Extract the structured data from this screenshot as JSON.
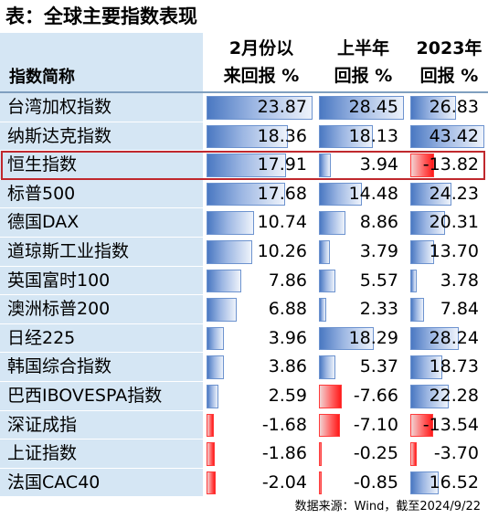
{
  "title": "表：全球主要指数表现",
  "header": {
    "name_label": "指数简称",
    "columns": [
      {
        "line1": "2月份以",
        "line2": "来回报 %"
      },
      {
        "line1": "上半年",
        "line2": "回报 %"
      },
      {
        "line1": "2023年",
        "line2": "回报 %"
      }
    ]
  },
  "rows": [
    {
      "name": "台湾加权指数",
      "values": [
        23.87,
        28.45,
        26.83
      ]
    },
    {
      "name": "纳斯达克指数",
      "values": [
        18.36,
        18.13,
        43.42
      ]
    },
    {
      "name": "恒生指数",
      "values": [
        17.91,
        3.94,
        -13.82
      ]
    },
    {
      "name": "标普500",
      "values": [
        17.68,
        14.48,
        24.23
      ]
    },
    {
      "name": "德国DAX",
      "values": [
        10.74,
        8.86,
        20.31
      ]
    },
    {
      "name": "道琼斯工业指数",
      "values": [
        10.26,
        3.79,
        13.7
      ]
    },
    {
      "name": "英国富时100",
      "values": [
        7.86,
        5.57,
        3.78
      ]
    },
    {
      "name": "澳洲标普200",
      "values": [
        6.88,
        2.33,
        7.84
      ]
    },
    {
      "name": "日经225",
      "values": [
        3.96,
        18.29,
        28.24
      ]
    },
    {
      "name": "韩国综合指数",
      "values": [
        3.86,
        5.37,
        18.73
      ]
    },
    {
      "name": "巴西IBOVESPA指数",
      "values": [
        2.59,
        -7.66,
        22.28
      ]
    },
    {
      "name": "深证成指",
      "values": [
        -1.68,
        -7.1,
        -13.54
      ]
    },
    {
      "name": "上证指数",
      "values": [
        -1.86,
        -0.25,
        -3.7
      ]
    },
    {
      "name": "法国CAC40",
      "values": [
        -2.04,
        -0.85,
        16.52
      ]
    }
  ],
  "highlighted_row": "恒生指数",
  "source": "数据来源：Wind，截至2024/9/22",
  "colors": {
    "name_column_bg": "#d5e6f4",
    "positive_bar": "#4a78c2",
    "negative_bar": "#ff1a1a",
    "highlight_border": "#c0282d"
  }
}
